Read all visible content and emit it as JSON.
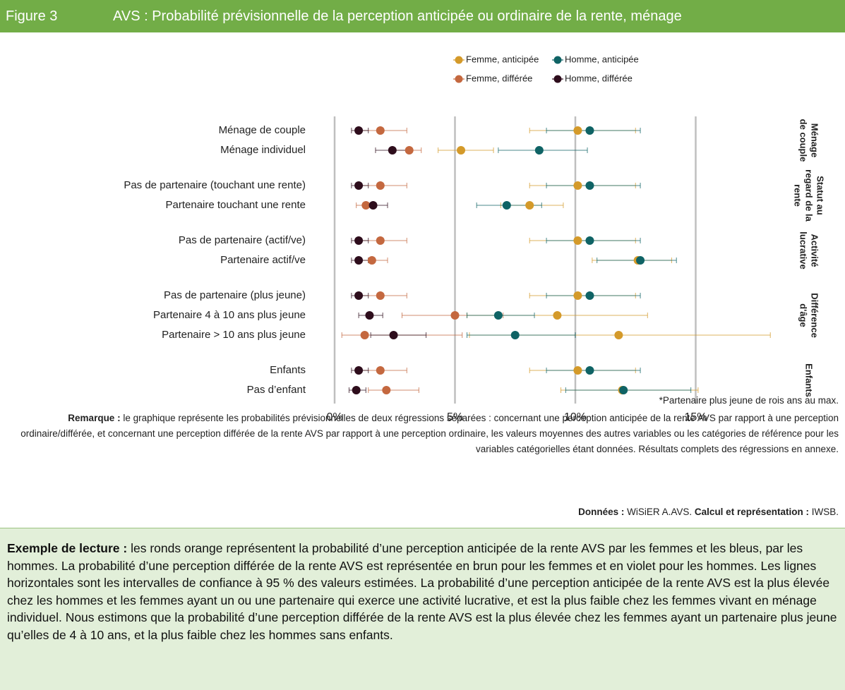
{
  "header": {
    "figure": "Figure 3",
    "title": "AVS : Probabilité prévisionnelle de la perception anticipée ou ordinaire de la rente, ménage"
  },
  "chart_data": {
    "type": "dot-errorbar",
    "groups": [
      {
        "name_lines": [
          "Ménage",
          "de couple"
        ],
        "categories": [
          "Ménage de couple",
          "Ménage individuel"
        ]
      },
      {
        "name_lines": [
          "Statut au",
          "regard de la",
          "rente"
        ],
        "categories": [
          "Pas de partenaire (touchant une rente)",
          "Partenaire touchant une rente"
        ]
      },
      {
        "name_lines": [
          "Activité",
          "lucrative"
        ],
        "categories": [
          "Pas de partenaire (actif/ve)",
          "Partenaire actif/ve"
        ]
      },
      {
        "name_lines": [
          "Différence",
          "d'âge"
        ],
        "categories": [
          "Pas de partenaire (plus jeune)",
          "Partenaire 4 à 10 ans plus jeune",
          "Partenaire > 10 ans plus jeune"
        ]
      },
      {
        "name_lines": [
          "Enfants"
        ],
        "categories": [
          "Enfants",
          "Pas d’enfant"
        ]
      }
    ],
    "series": [
      {
        "name": "Femme, anticipée",
        "color": "#d49a2a",
        "values": [
          10.1,
          5.25,
          10.1,
          8.1,
          10.1,
          12.6,
          10.1,
          9.25,
          11.8,
          10.1,
          11.95
        ],
        "lower": [
          8.1,
          4.3,
          8.1,
          6.9,
          8.1,
          10.7,
          8.1,
          5.5,
          5.6,
          8.1,
          9.4
        ],
        "upper": [
          12.5,
          6.6,
          12.5,
          9.5,
          12.5,
          14.0,
          12.5,
          13.0,
          18.1,
          12.5,
          15.1
        ]
      },
      {
        "name": "Homme, anticipée",
        "color": "#0f6365",
        "values": [
          10.6,
          8.5,
          10.6,
          7.15,
          10.6,
          12.7,
          10.6,
          6.8,
          7.5,
          10.6,
          12.0
        ],
        "lower": [
          8.8,
          6.8,
          8.8,
          5.9,
          8.8,
          10.9,
          8.8,
          5.5,
          5.5,
          8.8,
          9.6
        ],
        "upper": [
          12.7,
          10.5,
          12.7,
          8.6,
          12.7,
          14.2,
          12.7,
          8.3,
          10.0,
          12.7,
          14.8
        ]
      },
      {
        "name": "Femme, différée",
        "color": "#c4683f",
        "values": [
          1.9,
          3.1,
          1.9,
          1.3,
          1.9,
          1.55,
          1.9,
          5.0,
          1.25,
          1.9,
          2.15
        ],
        "lower": [
          1.0,
          2.5,
          1.0,
          0.9,
          1.0,
          1.1,
          1.0,
          2.8,
          0.3,
          1.0,
          1.4
        ],
        "upper": [
          3.0,
          3.6,
          3.0,
          1.7,
          3.0,
          2.2,
          3.0,
          7.0,
          5.3,
          3.0,
          3.5
        ]
      },
      {
        "name": "Homme, différée",
        "color": "#2e0d1c",
        "values": [
          1.0,
          2.4,
          1.0,
          1.6,
          1.0,
          1.0,
          1.0,
          1.45,
          2.45,
          1.0,
          0.9
        ],
        "lower": [
          0.7,
          1.7,
          0.7,
          1.2,
          0.7,
          0.7,
          0.7,
          1.0,
          1.5,
          0.7,
          0.6
        ],
        "upper": [
          1.4,
          3.0,
          1.4,
          2.2,
          1.4,
          1.4,
          1.4,
          2.0,
          3.8,
          1.4,
          1.3
        ]
      }
    ],
    "xlim": [
      0,
      18.5
    ],
    "xticks": [
      {
        "value": 0,
        "label": "0%"
      },
      {
        "value": 5,
        "label": "5%"
      },
      {
        "value": 10,
        "label": "10%"
      },
      {
        "value": 15,
        "label": "15%"
      }
    ],
    "grid": true,
    "legend": "top"
  },
  "notes": {
    "star": "*Partenaire plus jeune de rois ans au max.",
    "remark_label": "Remarque :",
    "remark_text": "le graphique représente les probabilités prévisionnelles de deux régressions séparées : concernant une perception anticipée de la rente AVS par rapport à une perception ordinaire/différée, et concernant une perception différée de la rente AVS par rapport à une perception ordinaire, les valeurs moyennes des autres variables ou les catégories de référence pour les variables catégorielles étant données. Résultats complets des régressions en annexe.",
    "data_label": "Données :",
    "data_text": "WiSiER A.AVS.",
    "calc_label": "Calcul et représentation :",
    "calc_text": "IWSB."
  },
  "reading": {
    "label": "Exemple de lecture :",
    "text": "les ronds orange représentent la probabilité d’une perception anticipée de la rente AVS par les femmes et les bleus, par les hommes. La probabilité d’une perception différée de la rente AVS est représentée en brun pour les femmes et en violet pour les hommes. Les lignes horizontales sont les intervalles de confiance à 95 % des valeurs estimées. La probabilité d’une perception anticipée de la rente AVS est la plus élevée chez les hommes et les femmes ayant un ou une partenaire qui exerce une activité lucrative, et est la plus faible chez les femmes vivant en ménage individuel. Nous estimons que la probabilité d’une perception différée de la rente AVS est la plus élevée chez les femmes ayant un partenaire plus jeune qu’elles de 4 à 10 ans, et la plus faible chez les hommes sans enfants."
  }
}
